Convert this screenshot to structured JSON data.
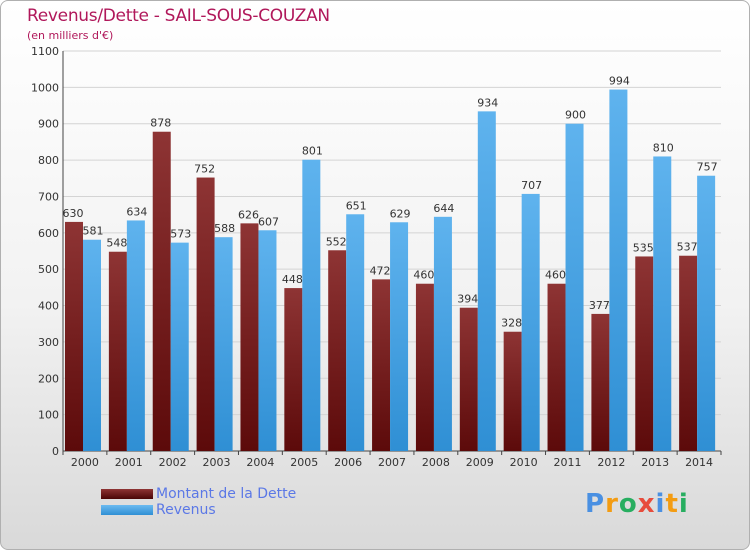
{
  "chart_data": {
    "type": "bar",
    "title": "Revenus/Dette - SAIL-SOUS-COUZAN",
    "subtitle": "(en milliers d'€)",
    "categories": [
      "2000",
      "2001",
      "2002",
      "2003",
      "2004",
      "2005",
      "2006",
      "2007",
      "2008",
      "2009",
      "2010",
      "2011",
      "2012",
      "2013",
      "2014"
    ],
    "series": [
      {
        "name": "Montant de la Dette",
        "color": "#7a1f24",
        "values": [
          630,
          548,
          878,
          752,
          626,
          448,
          552,
          472,
          460,
          394,
          328,
          460,
          377,
          535,
          537
        ]
      },
      {
        "name": "Revenus",
        "color": "#3a9ee2",
        "values": [
          581,
          634,
          573,
          588,
          607,
          801,
          651,
          629,
          644,
          934,
          707,
          900,
          994,
          810,
          757
        ]
      }
    ],
    "ylim": [
      0,
      1100
    ],
    "yticks": [
      0,
      100,
      200,
      300,
      400,
      500,
      600,
      700,
      800,
      900,
      1000,
      1100
    ],
    "grid": true,
    "legend_position": "bottom-left"
  },
  "logo": {
    "letters": [
      "P",
      "r",
      "o",
      "x",
      "i",
      "t",
      "i"
    ],
    "colors": [
      "#4a90e2",
      "#f39c12",
      "#27ae60",
      "#e74c3c",
      "#4a90e2",
      "#f39c12",
      "#27ae60"
    ]
  }
}
